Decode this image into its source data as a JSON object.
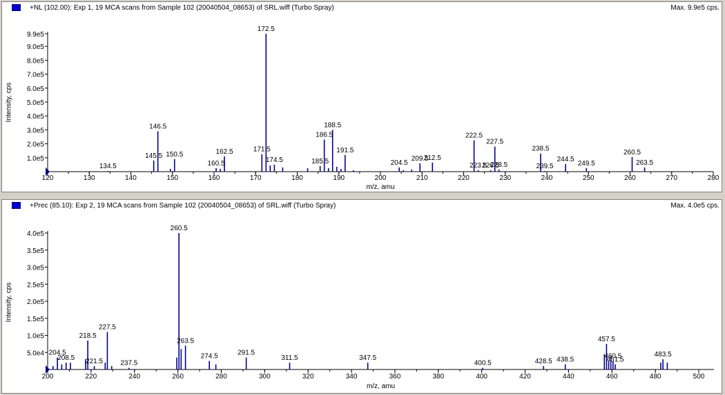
{
  "panels": [
    {
      "icon": "spectrum-marker-icon",
      "title": "+NL (102.00): Exp 1, 19 MCA scans from Sample 102 (20040504_08653) of SRL.wiff (Turbo Spray)",
      "max_label": "Max. 9.9e5 cps."
    },
    {
      "icon": "spectrum-marker-icon",
      "title": "+Prec (85.10): Exp 2, 19 MCA scans from Sample 102 (20040504_08653) of SRL.wiff (Turbo Spray)",
      "max_label": "Max. 4.0e5 cps."
    }
  ],
  "colors": {
    "peak": "#00008b",
    "axis": "#000000",
    "marker": "#0000cc"
  },
  "chart_data": [
    {
      "type": "bar",
      "title": "+NL (102.00): Exp 1, 19 MCA scans from Sample 102 (20040504_08653) of SRL.wiff (Turbo Spray)",
      "xlabel": "m/z, amu",
      "ylabel": "Intensity, cps",
      "xlim": [
        120,
        280
      ],
      "ylim": [
        0,
        990000
      ],
      "x_ticks": [
        120,
        130,
        140,
        150,
        160,
        170,
        180,
        190,
        200,
        210,
        220,
        230,
        240,
        250,
        260,
        270,
        280
      ],
      "y_ticks": [
        {
          "v": 100000,
          "label": "1.0e5"
        },
        {
          "v": 200000,
          "label": "2.0e5"
        },
        {
          "v": 300000,
          "label": "3.0e5"
        },
        {
          "v": 400000,
          "label": "4.0e5"
        },
        {
          "v": 500000,
          "label": "5.0e5"
        },
        {
          "v": 600000,
          "label": "6.0e5"
        },
        {
          "v": 700000,
          "label": "7.0e5"
        },
        {
          "v": 800000,
          "label": "8.0e5"
        },
        {
          "v": 900000,
          "label": "9.0e5"
        },
        {
          "v": 990000,
          "label": "9.9e5"
        }
      ],
      "peaks": [
        {
          "x": 134.5,
          "y": 5000,
          "label": "134.5"
        },
        {
          "x": 145.5,
          "y": 80000,
          "label": "145.5"
        },
        {
          "x": 146.5,
          "y": 290000,
          "label": "146.5"
        },
        {
          "x": 149.5,
          "y": 20000
        },
        {
          "x": 150.5,
          "y": 90000,
          "label": "150.5"
        },
        {
          "x": 160.5,
          "y": 25000,
          "label": "160.5"
        },
        {
          "x": 161.5,
          "y": 20000
        },
        {
          "x": 162.5,
          "y": 110000,
          "label": "162.5"
        },
        {
          "x": 171.5,
          "y": 125000,
          "label": "171.5"
        },
        {
          "x": 172.5,
          "y": 990000,
          "label": "172.5"
        },
        {
          "x": 173.5,
          "y": 45000
        },
        {
          "x": 174.5,
          "y": 50000,
          "label": "174.5"
        },
        {
          "x": 176.5,
          "y": 30000
        },
        {
          "x": 182.5,
          "y": 25000
        },
        {
          "x": 185.5,
          "y": 40000,
          "label": "185.5"
        },
        {
          "x": 186.5,
          "y": 230000,
          "label": "186.5"
        },
        {
          "x": 187.5,
          "y": 25000
        },
        {
          "x": 188.5,
          "y": 300000,
          "label": "188.5"
        },
        {
          "x": 189.5,
          "y": 35000
        },
        {
          "x": 190.5,
          "y": 20000
        },
        {
          "x": 191.5,
          "y": 120000,
          "label": "191.5"
        },
        {
          "x": 193.5,
          "y": 10000
        },
        {
          "x": 204.5,
          "y": 30000,
          "label": "204.5"
        },
        {
          "x": 205.5,
          "y": 10000
        },
        {
          "x": 207.5,
          "y": 15000
        },
        {
          "x": 209.5,
          "y": 60000,
          "label": "209.5"
        },
        {
          "x": 212.5,
          "y": 65000,
          "label": "212.5"
        },
        {
          "x": 222.5,
          "y": 225000,
          "label": "222.5"
        },
        {
          "x": 223.5,
          "y": 10000,
          "label": "223.5"
        },
        {
          "x": 226.5,
          "y": 10000,
          "label": "226.5"
        },
        {
          "x": 227.5,
          "y": 180000,
          "label": "227.5"
        },
        {
          "x": 228.5,
          "y": 15000,
          "label": "228.5"
        },
        {
          "x": 238.5,
          "y": 130000,
          "label": "238.5"
        },
        {
          "x": 239.5,
          "y": 5000,
          "label": "239.5"
        },
        {
          "x": 244.5,
          "y": 55000,
          "label": "244.5"
        },
        {
          "x": 249.5,
          "y": 25000,
          "label": "249.5"
        },
        {
          "x": 260.5,
          "y": 105000,
          "label": "260.5"
        },
        {
          "x": 263.5,
          "y": 30000,
          "label": "263.5"
        }
      ]
    },
    {
      "type": "bar",
      "title": "+Prec (85.10): Exp 2, 19 MCA scans from Sample 102 (20040504_08653) of SRL.wiff (Turbo Spray)",
      "xlabel": "m/z, amu",
      "ylabel": "Intensity, cps",
      "xlim": [
        200,
        507
      ],
      "ylim": [
        0,
        400000
      ],
      "x_ticks": [
        200,
        220,
        240,
        260,
        280,
        300,
        320,
        340,
        360,
        380,
        400,
        420,
        440,
        460,
        480,
        500
      ],
      "y_ticks": [
        {
          "v": 50000,
          "label": "5.0e4"
        },
        {
          "v": 100000,
          "label": "1.0e5"
        },
        {
          "v": 150000,
          "label": "1.5e5"
        },
        {
          "v": 200000,
          "label": "2.0e5"
        },
        {
          "v": 250000,
          "label": "2.5e5"
        },
        {
          "v": 300000,
          "label": "3.0e5"
        },
        {
          "v": 350000,
          "label": "3.5e5"
        },
        {
          "v": 400000,
          "label": "4.0e5"
        }
      ],
      "peaks": [
        {
          "x": 202.5,
          "y": 10000
        },
        {
          "x": 204.5,
          "y": 35000,
          "label": "204.5"
        },
        {
          "x": 206.5,
          "y": 15000
        },
        {
          "x": 208.5,
          "y": 20000,
          "label": "208.5"
        },
        {
          "x": 210.5,
          "y": 20000
        },
        {
          "x": 217.5,
          "y": 30000
        },
        {
          "x": 218.5,
          "y": 85000,
          "label": "218.5"
        },
        {
          "x": 221.5,
          "y": 10000,
          "label": "221.5"
        },
        {
          "x": 226.5,
          "y": 20000
        },
        {
          "x": 227.5,
          "y": 110000,
          "label": "227.5"
        },
        {
          "x": 229.5,
          "y": 10000
        },
        {
          "x": 237.5,
          "y": 5000,
          "label": "237.5"
        },
        {
          "x": 259.5,
          "y": 35000
        },
        {
          "x": 260.5,
          "y": 400000,
          "label": "260.5"
        },
        {
          "x": 261.5,
          "y": 60000
        },
        {
          "x": 263.5,
          "y": 70000,
          "label": "263.5"
        },
        {
          "x": 274.5,
          "y": 25000,
          "label": "274.5"
        },
        {
          "x": 277.5,
          "y": 15000
        },
        {
          "x": 291.5,
          "y": 35000,
          "label": "291.5"
        },
        {
          "x": 311.5,
          "y": 20000,
          "label": "311.5"
        },
        {
          "x": 347.5,
          "y": 20000,
          "label": "347.5"
        },
        {
          "x": 400.5,
          "y": 5000,
          "label": "400.5"
        },
        {
          "x": 428.5,
          "y": 10000,
          "label": "428.5"
        },
        {
          "x": 438.5,
          "y": 15000,
          "label": "438.5"
        },
        {
          "x": 456.5,
          "y": 45000
        },
        {
          "x": 457.5,
          "y": 75000,
          "label": "457.5"
        },
        {
          "x": 458.5,
          "y": 25000
        },
        {
          "x": 459.5,
          "y": 40000
        },
        {
          "x": 460.5,
          "y": 25000,
          "label": "460.5"
        },
        {
          "x": 461.5,
          "y": 15000,
          "label": "461.5"
        },
        {
          "x": 482.5,
          "y": 20000
        },
        {
          "x": 483.5,
          "y": 30000,
          "label": "483.5"
        },
        {
          "x": 485.5,
          "y": 20000
        }
      ]
    }
  ]
}
